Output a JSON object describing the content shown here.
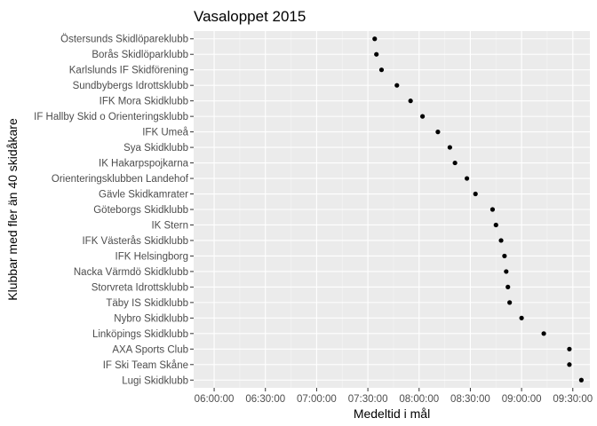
{
  "chart_data": {
    "type": "scatter",
    "title": "Vasaloppet 2015",
    "xlabel": "Medeltid i mål",
    "ylabel": "Klubbar med fler än 40 skidåkare",
    "xlim": [
      "05:48:00",
      "09:40:00"
    ],
    "x_ticks": [
      "06:00:00",
      "06:30:00",
      "07:00:00",
      "07:30:00",
      "08:00:00",
      "08:30:00",
      "09:00:00",
      "09:30:00"
    ],
    "grid": true,
    "legend": "none",
    "colors": {
      "panel": "#ebebeb",
      "grid_major": "#ffffff",
      "grid_minor": "#f5f5f5",
      "point": "#000000"
    },
    "points": [
      {
        "club": "Östersunds Skidlöpareklubb",
        "time": "07:34:00"
      },
      {
        "club": "Borås Skidlöparklubb",
        "time": "07:35:00"
      },
      {
        "club": "Karlslunds IF Skidförening",
        "time": "07:38:00"
      },
      {
        "club": "Sundbybergs Idrottsklubb",
        "time": "07:47:00"
      },
      {
        "club": "IFK Mora Skidklubb",
        "time": "07:55:00"
      },
      {
        "club": "IF Hallby Skid o Orienteringsklubb",
        "time": "08:02:00"
      },
      {
        "club": "IFK Umeå",
        "time": "08:11:00"
      },
      {
        "club": "Sya Skidklubb",
        "time": "08:18:00"
      },
      {
        "club": "IK Hakarpspojkarna",
        "time": "08:21:00"
      },
      {
        "club": "Orienteringsklubben Landehof",
        "time": "08:28:00"
      },
      {
        "club": "Gävle Skidkamrater",
        "time": "08:33:00"
      },
      {
        "club": "Göteborgs Skidklubb",
        "time": "08:43:00"
      },
      {
        "club": "IK Stern",
        "time": "08:45:00"
      },
      {
        "club": "IFK Västerås Skidklubb",
        "time": "08:48:00"
      },
      {
        "club": "IFK Helsingborg",
        "time": "08:50:00"
      },
      {
        "club": "Nacka Värmdö Skidklubb",
        "time": "08:51:00"
      },
      {
        "club": "Storvreta Idrottsklubb",
        "time": "08:52:00"
      },
      {
        "club": "Täby IS Skidklubb",
        "time": "08:53:00"
      },
      {
        "club": "Nybro Skidklubb",
        "time": "09:00:00"
      },
      {
        "club": "Linköpings Skidklubb",
        "time": "09:13:00"
      },
      {
        "club": "AXA Sports Club",
        "time": "09:28:00"
      },
      {
        "club": "IF Ski Team Skåne",
        "time": "09:28:00"
      },
      {
        "club": "Lugi Skidklubb",
        "time": "09:35:00"
      }
    ]
  }
}
